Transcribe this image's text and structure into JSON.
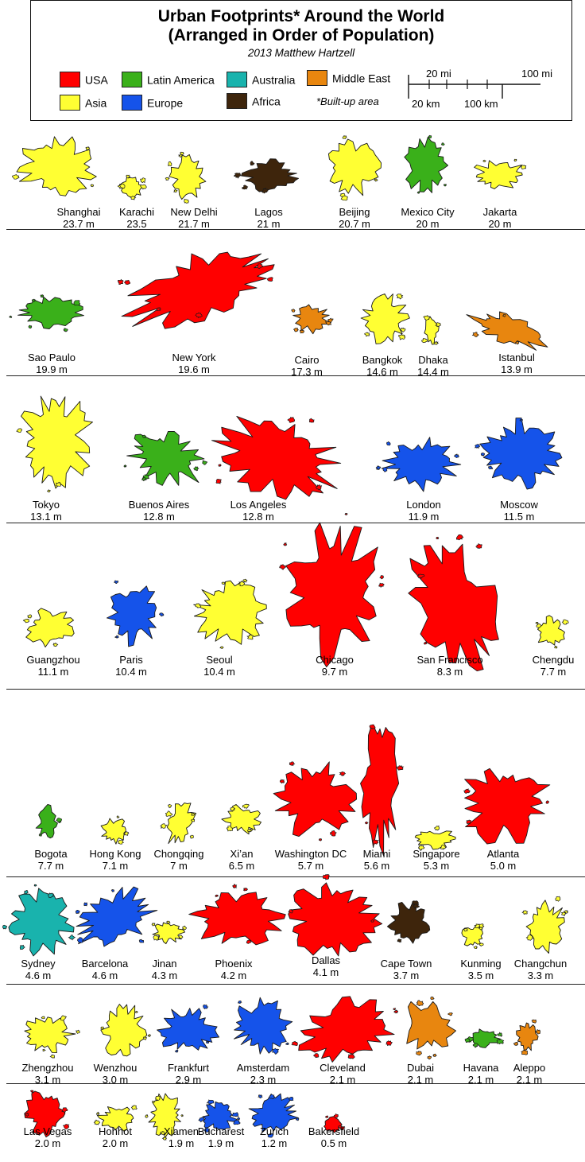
{
  "header": {
    "title_line1": "Urban Footprints* Around the World",
    "title_line2": "(Arranged in Order of Population)",
    "credit": "2013 Matthew Hartzell",
    "note": "*Built-up area"
  },
  "legend": [
    {
      "label": "USA",
      "color": "#ff0000"
    },
    {
      "label": "Latin America",
      "color": "#3ab01a"
    },
    {
      "label": "Australia",
      "color": "#19b3ad"
    },
    {
      "label": "Middle East",
      "color": "#e8860f"
    },
    {
      "label": "Asia",
      "color": "#ffff33"
    },
    {
      "label": "Europe",
      "color": "#1553ea"
    },
    {
      "label": "Africa",
      "color": "#3e250c"
    }
  ],
  "scale": {
    "mi_labels": [
      "20 mi",
      "100 mi"
    ],
    "km_labels": [
      "20 km",
      "100 km"
    ]
  },
  "cities": [
    {
      "name": "Shanghai",
      "pop": "23.7 m",
      "color": "#ffff33",
      "icon": "shanghai-footprint"
    },
    {
      "name": "Karachi",
      "pop": "23.5",
      "color": "#ffff33",
      "icon": "karachi-footprint"
    },
    {
      "name": "New Delhi",
      "pop": "21.7 m",
      "color": "#ffff33",
      "icon": "new-delhi-footprint"
    },
    {
      "name": "Lagos",
      "pop": "21 m",
      "color": "#3e250c",
      "icon": "lagos-footprint"
    },
    {
      "name": "Beijing",
      "pop": "20.7 m",
      "color": "#ffff33",
      "icon": "beijing-footprint"
    },
    {
      "name": "Mexico City",
      "pop": "20 m",
      "color": "#3ab01a",
      "icon": "mexico-city-footprint"
    },
    {
      "name": "Jakarta",
      "pop": "20 m",
      "color": "#ffff33",
      "icon": "jakarta-footprint"
    },
    {
      "name": "Sao Paulo",
      "pop": "19.9 m",
      "color": "#3ab01a",
      "icon": "sao-paulo-footprint"
    },
    {
      "name": "New York",
      "pop": "19.6 m",
      "color": "#ff0000",
      "icon": "new-york-footprint"
    },
    {
      "name": "Cairo",
      "pop": "17.3 m",
      "color": "#e8860f",
      "icon": "cairo-footprint"
    },
    {
      "name": "Bangkok",
      "pop": "14.6 m",
      "color": "#ffff33",
      "icon": "bangkok-footprint"
    },
    {
      "name": "Dhaka",
      "pop": "14.4 m",
      "color": "#ffff33",
      "icon": "dhaka-footprint"
    },
    {
      "name": "Istanbul",
      "pop": "13.9 m",
      "color": "#e8860f",
      "icon": "istanbul-footprint"
    },
    {
      "name": "Tokyo",
      "pop": "13.1 m",
      "color": "#ffff33",
      "icon": "tokyo-footprint"
    },
    {
      "name": "Buenos Aires",
      "pop": "12.8 m",
      "color": "#3ab01a",
      "icon": "buenos-aires-footprint"
    },
    {
      "name": "Los Angeles",
      "pop": "12.8 m",
      "color": "#ff0000",
      "icon": "los-angeles-footprint"
    },
    {
      "name": "London",
      "pop": "11.9 m",
      "color": "#1553ea",
      "icon": "london-footprint"
    },
    {
      "name": "Moscow",
      "pop": "11.5 m",
      "color": "#1553ea",
      "icon": "moscow-footprint"
    },
    {
      "name": "Guangzhou",
      "pop": "11.1 m",
      "color": "#ffff33",
      "icon": "guangzhou-footprint"
    },
    {
      "name": "Paris",
      "pop": "10.4 m",
      "color": "#1553ea",
      "icon": "paris-footprint"
    },
    {
      "name": "Seoul",
      "pop": "10.4 m",
      "color": "#ffff33",
      "icon": "seoul-footprint"
    },
    {
      "name": "Chicago",
      "pop": "9.7 m",
      "color": "#ff0000",
      "icon": "chicago-footprint"
    },
    {
      "name": "San Francisco",
      "pop": "8.3 m",
      "color": "#ff0000",
      "icon": "san-francisco-footprint"
    },
    {
      "name": "Chengdu",
      "pop": "7.7 m",
      "color": "#ffff33",
      "icon": "chengdu-footprint"
    },
    {
      "name": "Bogota",
      "pop": "7.7 m",
      "color": "#3ab01a",
      "icon": "bogota-footprint"
    },
    {
      "name": "Hong Kong",
      "pop": "7.1 m",
      "color": "#ffff33",
      "icon": "hong-kong-footprint"
    },
    {
      "name": "Chongqing",
      "pop": "7 m",
      "color": "#ffff33",
      "icon": "chongqing-footprint"
    },
    {
      "name": "Xi’an",
      "pop": "6.5 m",
      "color": "#ffff33",
      "icon": "xian-footprint"
    },
    {
      "name": "Washington DC",
      "pop": "5.7 m",
      "color": "#ff0000",
      "icon": "washington-dc-footprint"
    },
    {
      "name": "Miami",
      "pop": "5.6 m",
      "color": "#ff0000",
      "icon": "miami-footprint"
    },
    {
      "name": "Singapore",
      "pop": "5.3 m",
      "color": "#ffff33",
      "icon": "singapore-footprint"
    },
    {
      "name": "Atlanta",
      "pop": "5.0 m",
      "color": "#ff0000",
      "icon": "atlanta-footprint"
    },
    {
      "name": "Sydney",
      "pop": "4.6 m",
      "color": "#19b3ad",
      "icon": "sydney-footprint"
    },
    {
      "name": "Barcelona",
      "pop": "4.6 m",
      "color": "#1553ea",
      "icon": "barcelona-footprint"
    },
    {
      "name": "Jinan",
      "pop": "4.3 m",
      "color": "#ffff33",
      "icon": "jinan-footprint"
    },
    {
      "name": "Phoenix",
      "pop": "4.2 m",
      "color": "#ff0000",
      "icon": "phoenix-footprint"
    },
    {
      "name": "Dallas",
      "pop": "4.1 m",
      "color": "#ff0000",
      "icon": "dallas-footprint"
    },
    {
      "name": "Cape Town",
      "pop": "3.7 m",
      "color": "#3e250c",
      "icon": "cape-town-footprint"
    },
    {
      "name": "Kunming",
      "pop": "3.5 m",
      "color": "#ffff33",
      "icon": "kunming-footprint"
    },
    {
      "name": "Changchun",
      "pop": "3.3 m",
      "color": "#ffff33",
      "icon": "changchun-footprint"
    },
    {
      "name": "Zhengzhou",
      "pop": "3.1 m",
      "color": "#ffff33",
      "icon": "zhengzhou-footprint"
    },
    {
      "name": "Wenzhou",
      "pop": "3.0 m",
      "color": "#ffff33",
      "icon": "wenzhou-footprint"
    },
    {
      "name": "Frankfurt",
      "pop": "2.9 m",
      "color": "#1553ea",
      "icon": "frankfurt-footprint"
    },
    {
      "name": "Amsterdam",
      "pop": "2.3 m",
      "color": "#1553ea",
      "icon": "amsterdam-footprint"
    },
    {
      "name": "Cleveland",
      "pop": "2.1 m",
      "color": "#ff0000",
      "icon": "cleveland-footprint"
    },
    {
      "name": "Dubai",
      "pop": "2.1 m",
      "color": "#e8860f",
      "icon": "dubai-footprint"
    },
    {
      "name": "Havana",
      "pop": "2.1 m",
      "color": "#3ab01a",
      "icon": "havana-footprint"
    },
    {
      "name": "Aleppo",
      "pop": "2.1 m",
      "color": "#e8860f",
      "icon": "aleppo-footprint"
    },
    {
      "name": "Las Vegas",
      "pop": "2.0 m",
      "color": "#ff0000",
      "icon": "las-vegas-footprint"
    },
    {
      "name": "Hohhot",
      "pop": "2.0 m",
      "color": "#ffff33",
      "icon": "hohhot-footprint"
    },
    {
      "name": "Xiamen",
      "pop": "1.9 m",
      "color": "#ffff33",
      "icon": "xiamen-footprint"
    },
    {
      "name": "Bucharest",
      "pop": "1.9 m",
      "color": "#1553ea",
      "icon": "bucharest-footprint"
    },
    {
      "name": "Zurich",
      "pop": "1.2 m",
      "color": "#1553ea",
      "icon": "zurich-footprint"
    },
    {
      "name": "Bakersfield",
      "pop": "0.5 m",
      "color": "#ff0000",
      "icon": "bakersfield-footprint"
    }
  ]
}
